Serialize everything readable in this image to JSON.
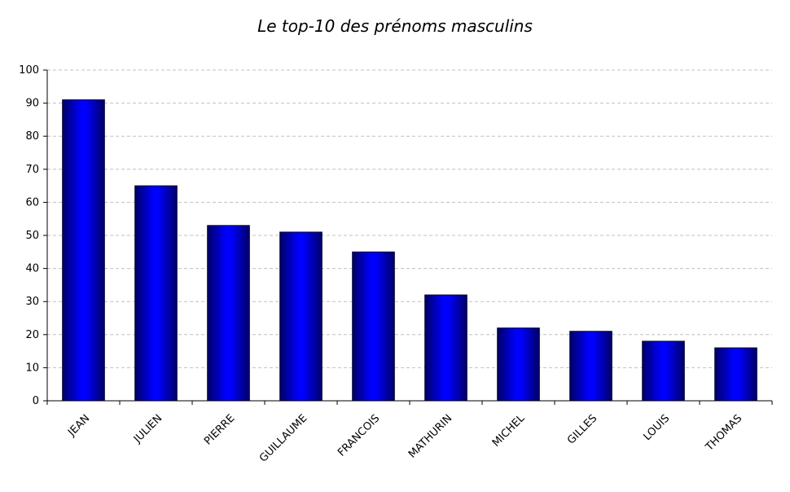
{
  "chart_data": {
    "type": "bar",
    "title": "Le top-10 des prénoms masculins",
    "categories": [
      "JEAN",
      "JULIEN",
      "PIERRE",
      "GUILLAUME",
      "FRANCOIS",
      "MATHURIN",
      "MICHEL",
      "GILLES",
      "LOUIS",
      "THOMAS"
    ],
    "values": [
      91,
      65,
      53,
      51,
      45,
      32,
      22,
      21,
      18,
      16
    ],
    "xlabel": "",
    "ylabel": "",
    "ylim": [
      0,
      100
    ],
    "yticks": [
      0,
      10,
      20,
      30,
      40,
      50,
      60,
      70,
      80,
      90,
      100
    ],
    "grid": "horizontal-dashed",
    "legend": "none",
    "bar_color": "#0000ff",
    "bar_edge_color": "#000033",
    "grid_color": "#c0c0c0"
  }
}
